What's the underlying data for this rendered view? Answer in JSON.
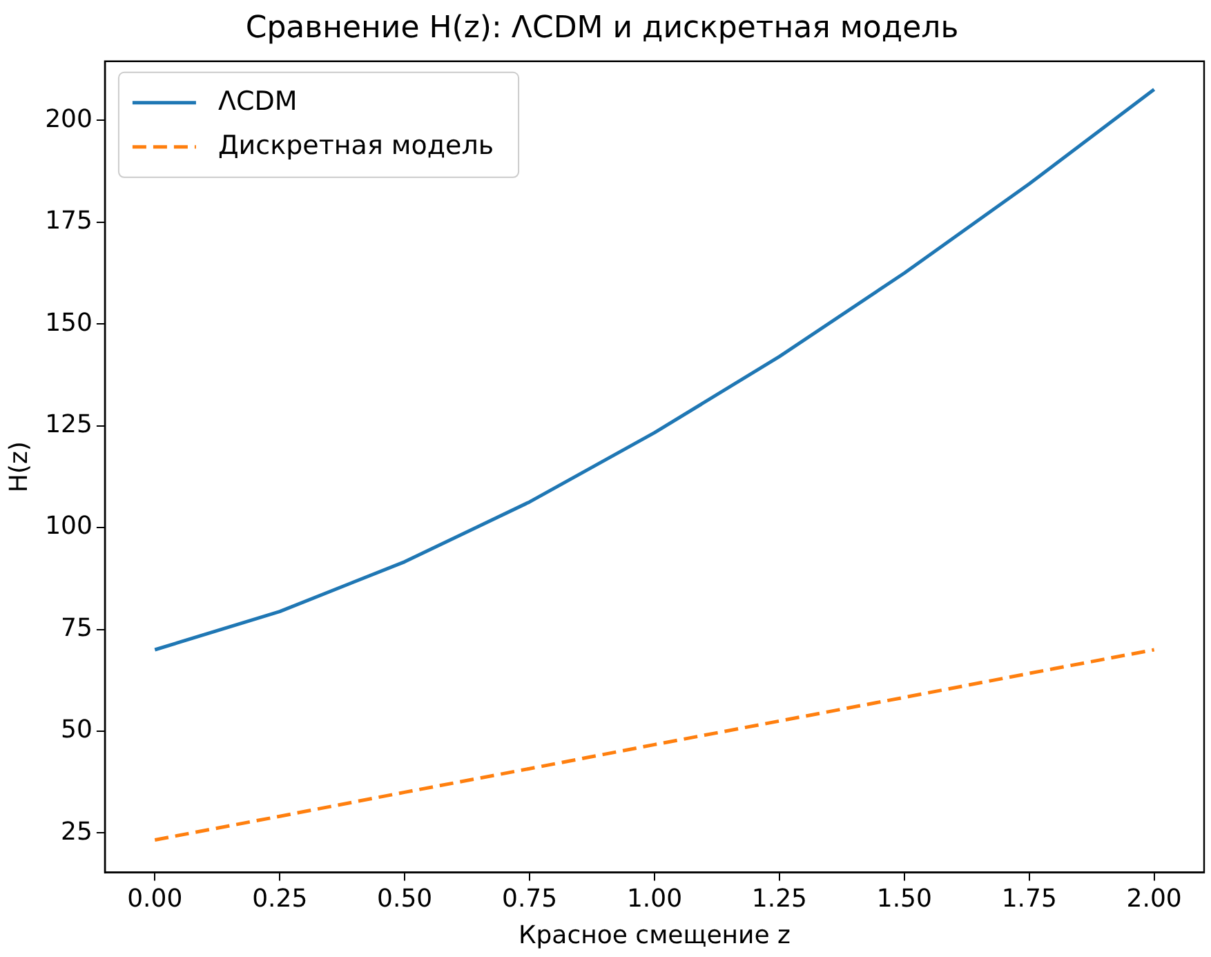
{
  "chart_data": {
    "type": "line",
    "title": "Сравнение H(z): ΛCDM и дискретная модель",
    "xlabel": "Красное смещение z",
    "ylabel": "H(z)",
    "x": [
      0,
      0.25,
      0.5,
      0.75,
      1.0,
      1.25,
      1.5,
      1.75,
      2.0
    ],
    "series": [
      {
        "name": "ΛCDM",
        "color": "#1f77b4",
        "line_style": "solid",
        "values": [
          70,
          79.4,
          91.6,
          106.3,
          123.3,
          142.0,
          162.5,
          184.4,
          207.6
        ]
      },
      {
        "name": "Дискретная модель",
        "color": "#ff7f0e",
        "line_style": "dashed",
        "values": [
          23.3,
          29.1,
          35.0,
          40.8,
          46.7,
          52.5,
          58.3,
          64.2,
          70.0
        ]
      }
    ],
    "xlim": [
      -0.1,
      2.1
    ],
    "xticks": [
      {
        "value": 0,
        "label": "0.00"
      },
      {
        "value": 0.25,
        "label": "0.25"
      },
      {
        "value": 0.5,
        "label": "0.50"
      },
      {
        "value": 0.75,
        "label": "0.75"
      },
      {
        "value": 1,
        "label": "1.00"
      },
      {
        "value": 1.25,
        "label": "1.25"
      },
      {
        "value": 1.5,
        "label": "1.50"
      },
      {
        "value": 1.75,
        "label": "1.75"
      },
      {
        "value": 2,
        "label": "2.00"
      }
    ],
    "ylim": [
      15.3,
      214.5
    ],
    "yticks": [
      25,
      50,
      75,
      100,
      125,
      150,
      175,
      200
    ],
    "grid": false,
    "legend": "top left",
    "marker": "none"
  }
}
